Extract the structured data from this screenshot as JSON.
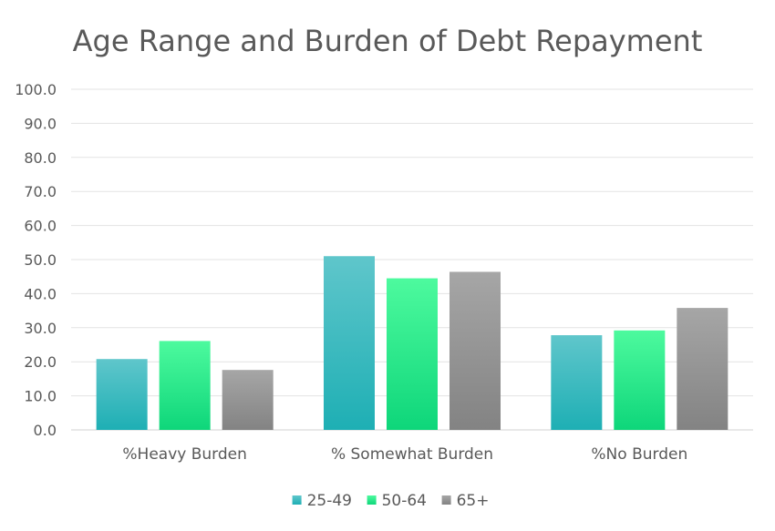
{
  "chart_data": {
    "type": "bar",
    "title": "Age Range and Burden of Debt Repayment",
    "xlabel": "",
    "ylabel": "",
    "categories": [
      "%Heavy Burden",
      "% Somewhat Burden",
      "%No Burden"
    ],
    "series": [
      {
        "name": "25-49",
        "values": [
          20.8,
          51.0,
          27.8
        ],
        "color_top": "#5FC6CB",
        "color_bottom": "#1EAFB4"
      },
      {
        "name": "50-64",
        "values": [
          26.1,
          44.5,
          29.2
        ],
        "color_top": "#4DFA9E",
        "color_bottom": "#0ED67A"
      },
      {
        "name": "65+",
        "values": [
          17.6,
          46.4,
          35.8
        ],
        "color_top": "#A6A6A6",
        "color_bottom": "#838383"
      }
    ],
    "ylim": [
      0,
      100
    ],
    "yticks": [
      "0.0",
      "10.0",
      "20.0",
      "30.0",
      "40.0",
      "50.0",
      "60.0",
      "70.0",
      "80.0",
      "90.0",
      "100.0"
    ],
    "grid": true,
    "legend_position": "bottom"
  }
}
